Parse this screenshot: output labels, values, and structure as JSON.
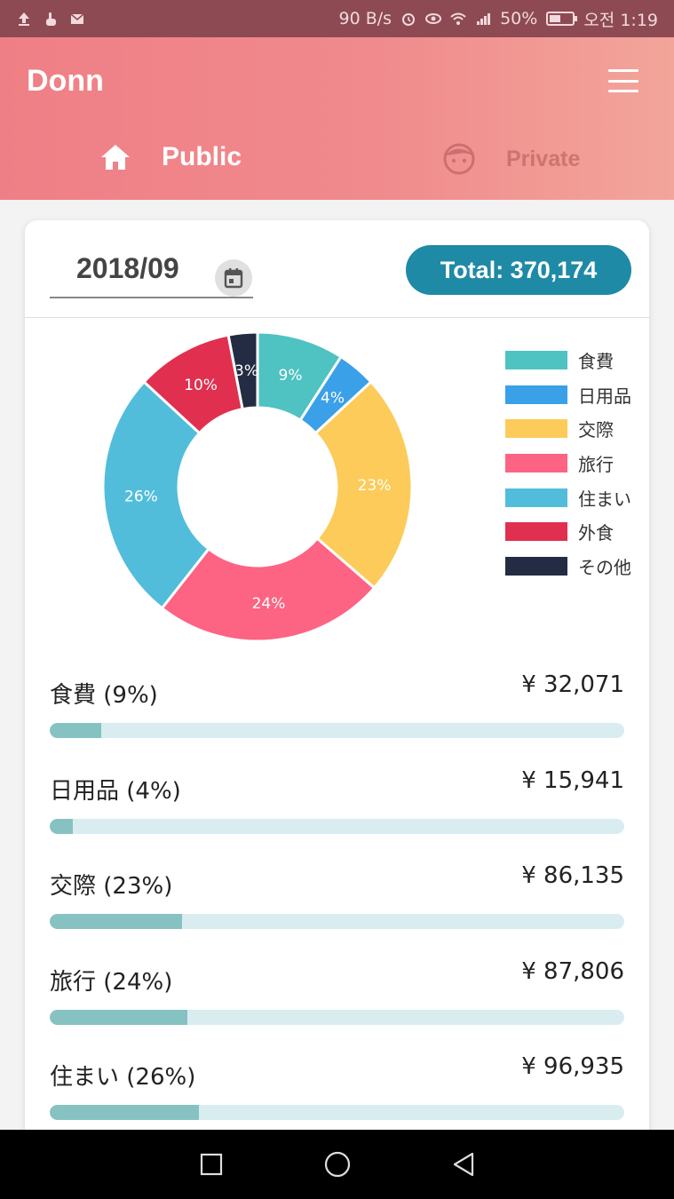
{
  "status_bar": {
    "speed": "90 B/s",
    "battery": "50%",
    "time": "오전 1:19"
  },
  "app": {
    "title": "Donn",
    "tabs": [
      {
        "label": "Public",
        "icon": "home-icon",
        "active": true
      },
      {
        "label": "Private",
        "icon": "face-icon",
        "active": false
      }
    ]
  },
  "summary": {
    "month": "2018/09",
    "total_label": "Total: 370,174"
  },
  "chart_data": {
    "type": "pie",
    "donut": true,
    "categories": [
      "食費",
      "日用品",
      "交際",
      "旅行",
      "住まい",
      "外食",
      "その他"
    ],
    "values": [
      9,
      4,
      23,
      24,
      26,
      10,
      3
    ],
    "labels": [
      "9%",
      "4%",
      "23%",
      "24%",
      "26%",
      "10%",
      "3%"
    ],
    "colors": [
      "#4fc2c2",
      "#3aa0e8",
      "#fccb59",
      "#fd6382",
      "#52bddb",
      "#e1304f",
      "#232c42"
    ],
    "legend_position": "right"
  },
  "categories": [
    {
      "name": "食費 (9%)",
      "amount": "¥ 32,071",
      "percent": 9
    },
    {
      "name": "日用品 (4%)",
      "amount": "¥ 15,941",
      "percent": 4
    },
    {
      "name": "交際 (23%)",
      "amount": "¥ 86,135",
      "percent": 23
    },
    {
      "name": "旅行 (24%)",
      "amount": "¥ 87,806",
      "percent": 24
    },
    {
      "name": "住まい (26%)",
      "amount": "¥ 96,935",
      "percent": 26
    }
  ]
}
